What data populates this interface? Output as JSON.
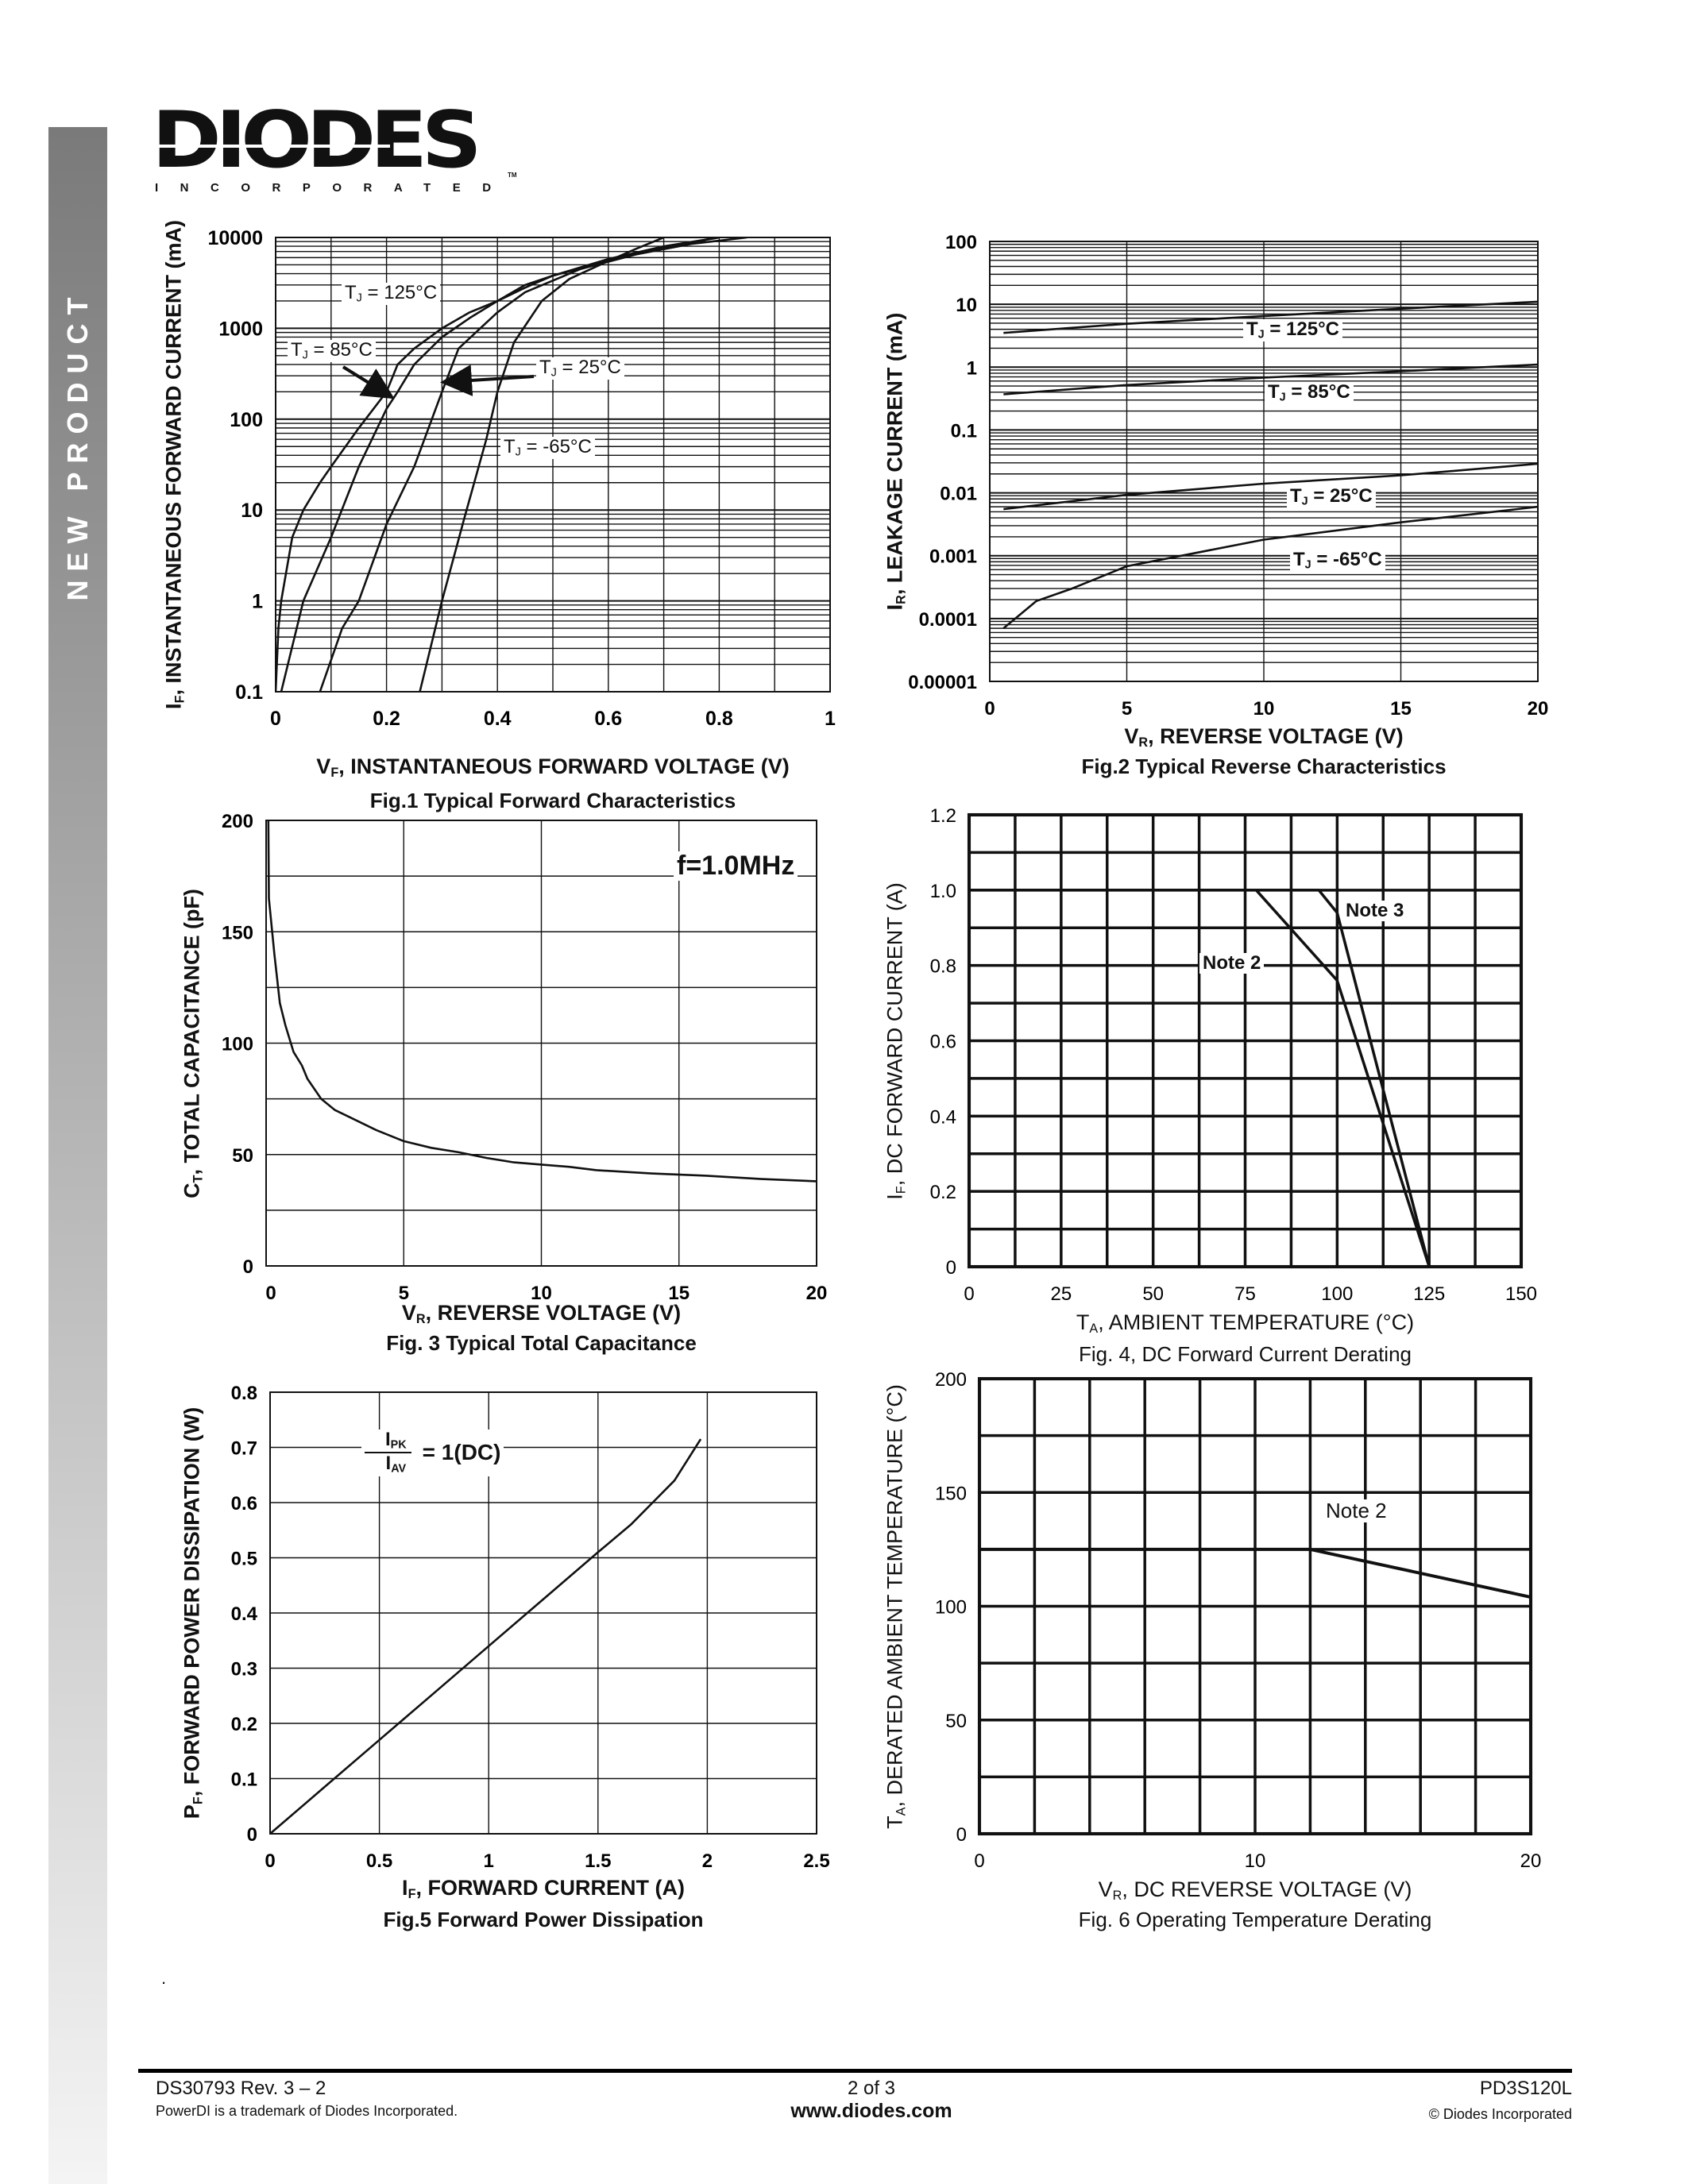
{
  "sidebar": {
    "label": "NEW PRODUCT",
    "color_top": "#7a7a7a"
  },
  "logo": {
    "word": "DIODES",
    "sub": "INCORPORATED",
    "tm": "TM"
  },
  "note_mark": ".",
  "chart_data": [
    {
      "type": "line",
      "title": "Fig.1 Typical Forward Characteristics",
      "xlabel": {
        "sym": "V",
        "sub": "F",
        "text": ", INSTANTANEOUS FORWARD VOLTAGE (V)"
      },
      "ylabel": {
        "sym": "I",
        "sub": "F",
        "text": ", INSTANTANEOUS FORWARD CURRENT (mA)"
      },
      "xlim": [
        0,
        1
      ],
      "ylim": [
        0.1,
        10000
      ],
      "xscale": "linear",
      "yscale": "log",
      "grid": true,
      "xticks": [
        0,
        0.2,
        0.4,
        0.6,
        0.8,
        1
      ],
      "xtick_labels": [
        "0",
        "0.2",
        "0.4",
        "0.6",
        "0.8",
        "1"
      ],
      "yticks": [
        0.1,
        1,
        10,
        100,
        1000,
        10000
      ],
      "ytick_labels": [
        "0.1",
        "1",
        "10",
        "100",
        "1000",
        "10000"
      ],
      "series": [
        {
          "label": {
            "sym": "T",
            "sub": "J",
            "text": " = 125°C"
          },
          "x": [
            0.0,
            0.005,
            0.01,
            0.03,
            0.05,
            0.08,
            0.1,
            0.15,
            0.2,
            0.22,
            0.25,
            0.3,
            0.35,
            0.4,
            0.45,
            0.5,
            0.6,
            0.65,
            0.7
          ],
          "y": [
            0.1,
            0.5,
            1,
            5,
            10,
            20,
            30,
            80,
            200,
            400,
            600,
            1000,
            1500,
            2000,
            3000,
            3800,
            5500,
            7500,
            10000
          ]
        },
        {
          "label": {
            "sym": "T",
            "sub": "J",
            "text": " = 85°C"
          },
          "x": [
            0.01,
            0.05,
            0.1,
            0.15,
            0.2,
            0.22,
            0.25,
            0.3,
            0.35,
            0.4,
            0.45,
            0.5,
            0.6,
            0.7,
            0.8
          ],
          "y": [
            0.1,
            1,
            5,
            30,
            130,
            200,
            400,
            800,
            1300,
            2000,
            2800,
            3800,
            5800,
            8000,
            10000
          ]
        },
        {
          "label": {
            "sym": "T",
            "sub": "J",
            "text": " = 25°C"
          },
          "x": [
            0.08,
            0.12,
            0.15,
            0.2,
            0.25,
            0.3,
            0.33,
            0.4,
            0.45,
            0.55,
            0.65,
            0.75,
            0.85
          ],
          "y": [
            0.1,
            0.5,
            1,
            7,
            30,
            200,
            600,
            1500,
            2500,
            4500,
            6500,
            8500,
            10000
          ]
        },
        {
          "label": {
            "sym": "T",
            "sub": "J",
            "text": " = -65°C"
          },
          "x": [
            0.26,
            0.3,
            0.34,
            0.38,
            0.4,
            0.43,
            0.48,
            0.53,
            0.6,
            0.7,
            0.8
          ],
          "y": [
            0.1,
            1,
            8,
            60,
            200,
            700,
            2000,
            3500,
            5500,
            7800,
            10000
          ]
        }
      ]
    },
    {
      "type": "line",
      "title": "Fig.2 Typical Reverse Characteristics",
      "xlabel": {
        "sym": "V",
        "sub": "R",
        "text": ", REVERSE VOLTAGE (V)"
      },
      "ylabel": {
        "sym": "I",
        "sub": "R",
        "text": ", LEAKAGE CURRENT (mA)"
      },
      "xlim": [
        0,
        20
      ],
      "ylim": [
        1e-05,
        100
      ],
      "xscale": "linear",
      "yscale": "log",
      "grid": true,
      "xticks": [
        0,
        5,
        10,
        15,
        20
      ],
      "xtick_labels": [
        "0",
        "5",
        "10",
        "15",
        "20"
      ],
      "yticks": [
        1e-05,
        0.0001,
        0.001,
        0.01,
        0.1,
        1,
        10,
        100
      ],
      "ytick_labels": [
        "0.00001",
        "0.0001",
        "0.001",
        "0.01",
        "0.1",
        "1",
        "10",
        "100"
      ],
      "series": [
        {
          "label": {
            "sym": "T",
            "sub": "J",
            "text": " = 125°C"
          },
          "x": [
            0.5,
            5,
            10,
            15,
            20
          ],
          "y": [
            3.5,
            4.9,
            6.5,
            8.5,
            11
          ]
        },
        {
          "label": {
            "sym": "T",
            "sub": "J",
            "text": " = 85°C"
          },
          "x": [
            0.5,
            5,
            10,
            15,
            20
          ],
          "y": [
            0.37,
            0.52,
            0.68,
            0.86,
            1.1
          ]
        },
        {
          "label": {
            "sym": "T",
            "sub": "J",
            "text": " = 25°C"
          },
          "x": [
            0.5,
            5,
            10,
            15,
            20
          ],
          "y": [
            0.0055,
            0.0093,
            0.014,
            0.019,
            0.029
          ]
        },
        {
          "label": {
            "sym": "T",
            "sub": "J",
            "text": " = -65°C"
          },
          "x": [
            0.5,
            1.7,
            3,
            5,
            7,
            10,
            15,
            20
          ],
          "y": [
            7e-05,
            0.00019,
            0.0003,
            0.00068,
            0.001,
            0.0018,
            0.0034,
            0.006
          ]
        }
      ]
    },
    {
      "type": "line",
      "title": "Fig. 3  Typical Total Capacitance",
      "xlabel": {
        "sym": "V",
        "sub": "R",
        "text": ", REVERSE VOLTAGE (V)"
      },
      "ylabel": {
        "sym": "C",
        "sub": "T",
        "text": ", TOTAL CAPACITANCE (pF)"
      },
      "xlim": [
        0,
        20
      ],
      "ylim": [
        0,
        200
      ],
      "xscale": "linear",
      "yscale": "linear",
      "grid": true,
      "xticks": [
        0,
        5,
        10,
        15,
        20
      ],
      "xtick_labels": [
        "0",
        "5",
        "10",
        "15",
        "20"
      ],
      "yticks": [
        0,
        50,
        100,
        150,
        200
      ],
      "ytick_labels": [
        "0",
        "50",
        "100",
        "150",
        "200"
      ],
      "annotation": "f=1.0MHz",
      "series": [
        {
          "x": [
            0.08,
            0.1,
            0.3,
            0.5,
            0.7,
            1,
            1.3,
            1.5,
            2,
            2.5,
            3,
            4,
            5,
            6,
            7,
            8,
            9,
            10,
            11,
            12,
            14,
            16,
            18,
            20
          ],
          "y": [
            200,
            165,
            140,
            118,
            108,
            96,
            90,
            84,
            75,
            70,
            67,
            61,
            56,
            53,
            51,
            48.5,
            46.5,
            45.5,
            44.5,
            43,
            41.5,
            40.5,
            39,
            38
          ]
        }
      ]
    },
    {
      "type": "line",
      "title": "Fig. 4,  DC Forward Current Derating",
      "xlabel": {
        "sym": "T",
        "sub": "A",
        "text": ", AMBIENT  TEMPERATURE (°C)"
      },
      "ylabel": {
        "sym": "I",
        "sub": "F",
        "text": ", DC FORWARD CURRENT (A)"
      },
      "xlim": [
        0,
        150
      ],
      "ylim": [
        0,
        1.2
      ],
      "xscale": "linear",
      "yscale": "linear",
      "grid": true,
      "xticks": [
        0,
        25,
        50,
        75,
        100,
        125,
        150
      ],
      "xtick_labels": [
        "0",
        "25",
        "50",
        "75",
        "100",
        "125",
        "150"
      ],
      "yticks": [
        0,
        0.2,
        0.4,
        0.6,
        0.8,
        1.0,
        1.2
      ],
      "ytick_labels": [
        "0",
        "0.2",
        "0.4",
        "0.6",
        "0.8",
        "1.0",
        "1.2"
      ],
      "series": [
        {
          "label": {
            "text": "Note 2"
          },
          "x": [
            0,
            78,
            100,
            125
          ],
          "y": [
            1.0,
            1.0,
            0.76,
            0
          ]
        },
        {
          "label": {
            "text": "Note 3"
          },
          "x": [
            0,
            95,
            100,
            125
          ],
          "y": [
            1.0,
            1.0,
            0.94,
            0
          ]
        }
      ]
    },
    {
      "type": "line",
      "title": "Fig.5 Forward Power Dissipation",
      "xlabel": {
        "sym": "I",
        "sub": "F",
        "text": ", FORWARD CURRENT (A)"
      },
      "ylabel": {
        "sym": "P",
        "sub": "F",
        "text": ", FORWARD POWER DISSIPATION (W)"
      },
      "xlim": [
        0,
        2.5
      ],
      "ylim": [
        0,
        0.8
      ],
      "xscale": "linear",
      "yscale": "linear",
      "grid": true,
      "xticks": [
        0,
        0.5,
        1,
        1.5,
        2,
        2.5
      ],
      "xtick_labels": [
        "0",
        "0.5",
        "1",
        "1.5",
        "2",
        "2.5"
      ],
      "yticks": [
        0,
        0.1,
        0.2,
        0.3,
        0.4,
        0.5,
        0.6,
        0.7,
        0.8
      ],
      "ytick_labels": [
        "0",
        "0.1",
        "0.2",
        "0.3",
        "0.4",
        "0.5",
        "0.6",
        "0.7",
        "0.8"
      ],
      "annotation": {
        "num_sym": "I",
        "num_sub": "PK",
        "den_sym": "I",
        "den_sub": "AV",
        "text": "= 1(DC)"
      },
      "series": [
        {
          "x": [
            0,
            0.25,
            0.5,
            0.75,
            1,
            1.25,
            1.5,
            1.65,
            1.75,
            1.85,
            1.97
          ],
          "y": [
            0,
            0.085,
            0.17,
            0.255,
            0.34,
            0.425,
            0.51,
            0.56,
            0.6,
            0.64,
            0.715
          ]
        }
      ]
    },
    {
      "type": "line",
      "title": "Fig. 6  Operating Temperature Derating",
      "xlabel": {
        "sym": "V",
        "sub": "R",
        "text": ", DC REVERSE VOLTAGE (V)"
      },
      "ylabel": {
        "sym": "T",
        "sub": "A",
        "text": ",  DERATED AMBIENT TEMPERATURE (°C)"
      },
      "xlim": [
        0,
        20
      ],
      "ylim": [
        0,
        200
      ],
      "xscale": "linear",
      "yscale": "linear",
      "grid": true,
      "xticks": [
        0,
        10,
        20
      ],
      "xtick_labels": [
        "0",
        "10",
        "20"
      ],
      "yticks": [
        0,
        50,
        100,
        150,
        200
      ],
      "ytick_labels": [
        "0",
        "50",
        "100",
        "150",
        "200"
      ],
      "series": [
        {
          "label": {
            "text": "Note 2"
          },
          "x": [
            0,
            12,
            20
          ],
          "y": [
            125,
            125,
            104
          ]
        }
      ]
    }
  ],
  "footer": {
    "doc_id": "DS30793 Rev. 3 – 2",
    "trademark": "PowerDI is a trademark of Diodes Incorporated.",
    "page": "2 of 3",
    "website": "www.diodes.com",
    "part": "PD3S120L",
    "copyright": "© Diodes Incorporated"
  }
}
